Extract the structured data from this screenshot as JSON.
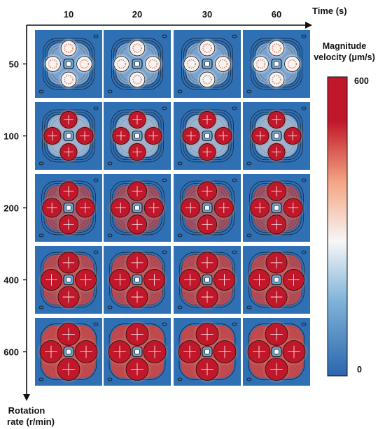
{
  "axes": {
    "x_title": "Time (s)",
    "y_title_line1": "Rotation",
    "y_title_line2": "rate (r/min)"
  },
  "columns": [
    "10",
    "20",
    "30",
    "60"
  ],
  "rows": [
    "50",
    "100",
    "200",
    "400",
    "600"
  ],
  "colorbar": {
    "title_line1": "Magnitude",
    "title_line2": "velocity (μm/s)",
    "max_label": "600",
    "min_label": "0",
    "max_value": 600,
    "min_value": 0,
    "colors": {
      "low": "#2b66ad",
      "mid": "#f7f7f7",
      "high": "#c0182a"
    }
  },
  "panels": {
    "rotation_rate_levels": [
      50,
      100,
      200,
      400,
      600
    ],
    "intensity_by_row": [
      0.15,
      0.35,
      0.6,
      0.85,
      1.0
    ],
    "contour_color": "#111111",
    "marker_color": "#ffffff"
  }
}
